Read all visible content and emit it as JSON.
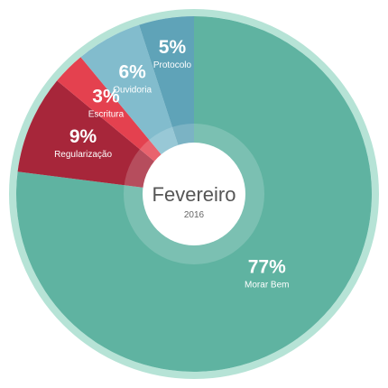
{
  "chart_data": {
    "type": "pie",
    "center_title": "Fevereiro",
    "center_subtitle": "2016",
    "slices": [
      {
        "name": "Morar Bem",
        "value": 77,
        "label": "77%",
        "color": "#5fb3a1"
      },
      {
        "name": "Regularização",
        "value": 9,
        "label": "9%",
        "color": "#a7263a"
      },
      {
        "name": "Escritura",
        "value": 3,
        "label": "3%",
        "color": "#e4414f"
      },
      {
        "name": "Ouvidoria",
        "value": 6,
        "label": "6%",
        "color": "#82bccd"
      },
      {
        "name": "Protocolo",
        "value": 5,
        "label": "5%",
        "color": "#5fa3b8"
      }
    ],
    "ring_color": "#b6e3d6"
  }
}
